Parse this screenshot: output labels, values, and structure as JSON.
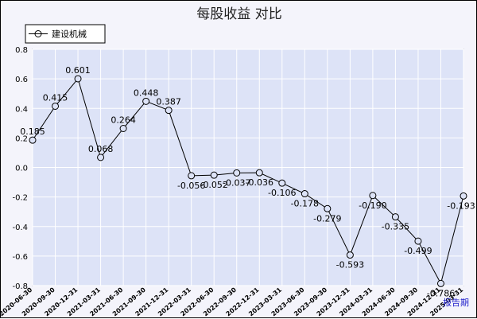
{
  "chart_data": {
    "type": "line",
    "title": "每股收益  对比",
    "series": [
      {
        "name": "建设机械",
        "color": "#000000",
        "values": [
          0.185,
          0.415,
          0.601,
          0.068,
          0.264,
          0.448,
          0.387,
          -0.056,
          -0.052,
          -0.037,
          -0.036,
          -0.106,
          -0.178,
          -0.279,
          -0.593,
          -0.19,
          -0.335,
          -0.499,
          -0.786,
          -0.193
        ]
      }
    ],
    "categories": [
      "2020-06-30",
      "2020-09-30",
      "2020-12-31",
      "2021-03-31",
      "2021-06-30",
      "2021-09-30",
      "2021-12-31",
      "2022-03-31",
      "2022-06-30",
      "2022-09-30",
      "2022-12-31",
      "2023-03-31",
      "2023-06-30",
      "2023-09-30",
      "2023-12-31",
      "2024-03-31",
      "2024-06-30",
      "2024-09-30",
      "2024-12-31",
      "2025-03-31"
    ],
    "data_labels": [
      "0.185",
      "0.415",
      "0.601",
      "0.068",
      "0.264",
      "0.448",
      "0.387",
      "-0.056",
      "-0.052",
      "-0.037",
      "-0.036",
      "-0.106",
      "-0.178",
      "-0.279",
      "-0.593",
      "-0.190",
      "-0.335",
      "-0.499",
      "-0.786",
      "-0.193"
    ],
    "yticks": [
      "0.8",
      "0.6",
      "0.4",
      "0.2",
      "0.0",
      "-0.2",
      "-0.4",
      "-0.6",
      "-0.8"
    ],
    "ylim": [
      -0.8,
      0.8
    ],
    "xlabel": "报告期",
    "ylabel": "",
    "grid": true,
    "legend_position": "top-left",
    "colors": {
      "plot_bg": "#dde3f7",
      "grid": "#ffffff",
      "frame_bg": "#f4f4fb",
      "line": "#000000"
    }
  }
}
